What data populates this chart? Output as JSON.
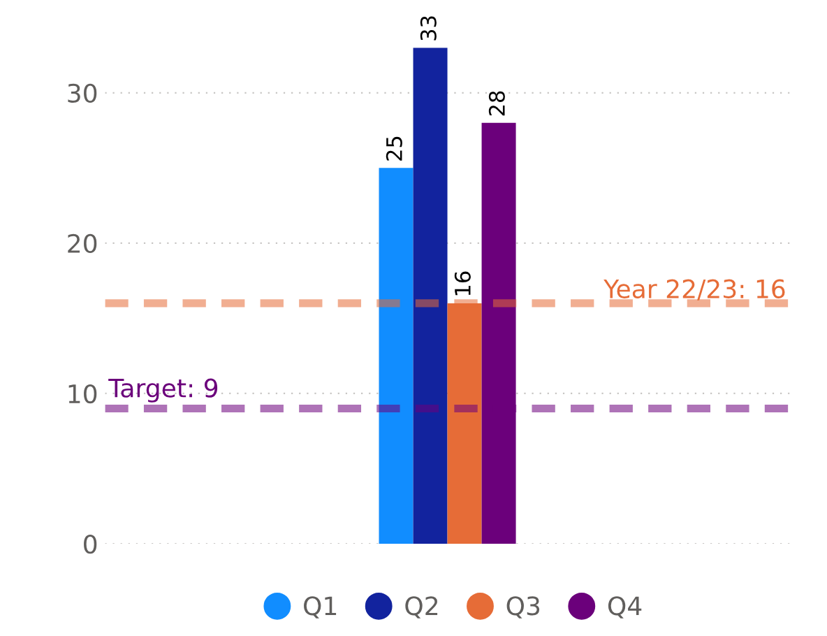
{
  "chart_data": {
    "type": "bar",
    "categories": [
      null
    ],
    "series": [
      {
        "name": "Q1",
        "color": "#118dff",
        "values": [
          25
        ]
      },
      {
        "name": "Q2",
        "color": "#12239e",
        "values": [
          33
        ]
      },
      {
        "name": "Q3",
        "color": "#e66c37",
        "values": [
          16
        ]
      },
      {
        "name": "Q4",
        "color": "#6b007b",
        "values": [
          28
        ]
      }
    ],
    "ylim": [
      0,
      33
    ],
    "yticks": [
      0,
      10,
      20,
      30
    ],
    "grid": "y",
    "legend": "bottom",
    "data_labels": true,
    "ref_lines": [
      {
        "axis": "y",
        "value": 16,
        "label": "Year 22/23: 16",
        "color": "#e66c37",
        "line_style": "dashed"
      },
      {
        "axis": "y",
        "value": 9,
        "label": "Target: 9",
        "color": "#6b007b",
        "line_style": "dashed"
      }
    ]
  }
}
